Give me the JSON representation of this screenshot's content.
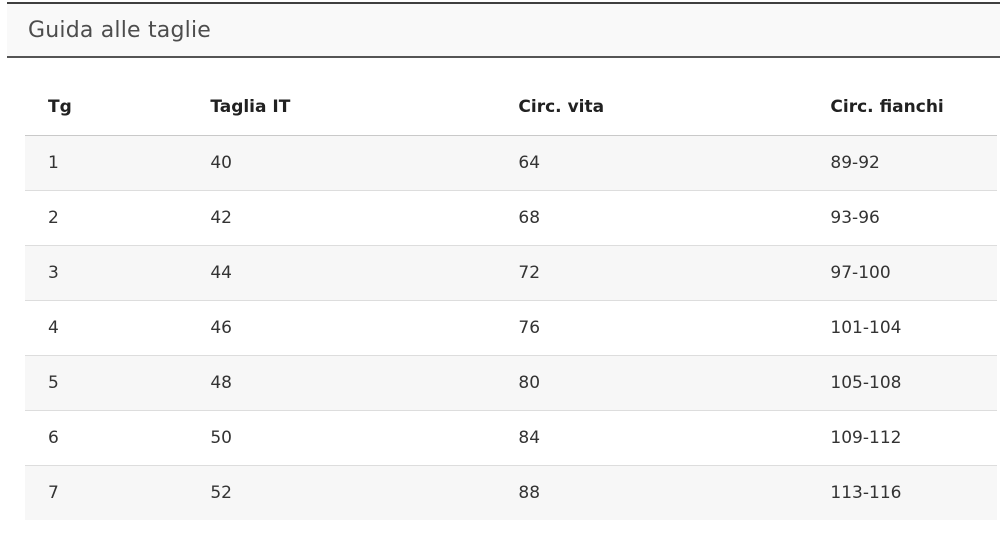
{
  "accordion": {
    "title": "Guida alle taglie"
  },
  "table": {
    "columns": [
      "Tg",
      "Taglia IT",
      "Circ. vita",
      "Circ. fianchi"
    ],
    "rows": [
      [
        "1",
        "40",
        "64",
        "89-92"
      ],
      [
        "2",
        "42",
        "68",
        "93-96"
      ],
      [
        "3",
        "44",
        "72",
        "97-100"
      ],
      [
        "4",
        "46",
        "76",
        "101-104"
      ],
      [
        "5",
        "48",
        "80",
        "105-108"
      ],
      [
        "6",
        "50",
        "84",
        "109-112"
      ],
      [
        "7",
        "52",
        "88",
        "113-116"
      ]
    ]
  },
  "colors": {
    "stripe_row_bg": "#f7f7f7",
    "header_bar_bg": "#f9f9f9",
    "header_bar_border": "#444444",
    "row_separator": "#dddddd",
    "heading_text": "#4d4d4d",
    "cell_text": "#333333"
  }
}
